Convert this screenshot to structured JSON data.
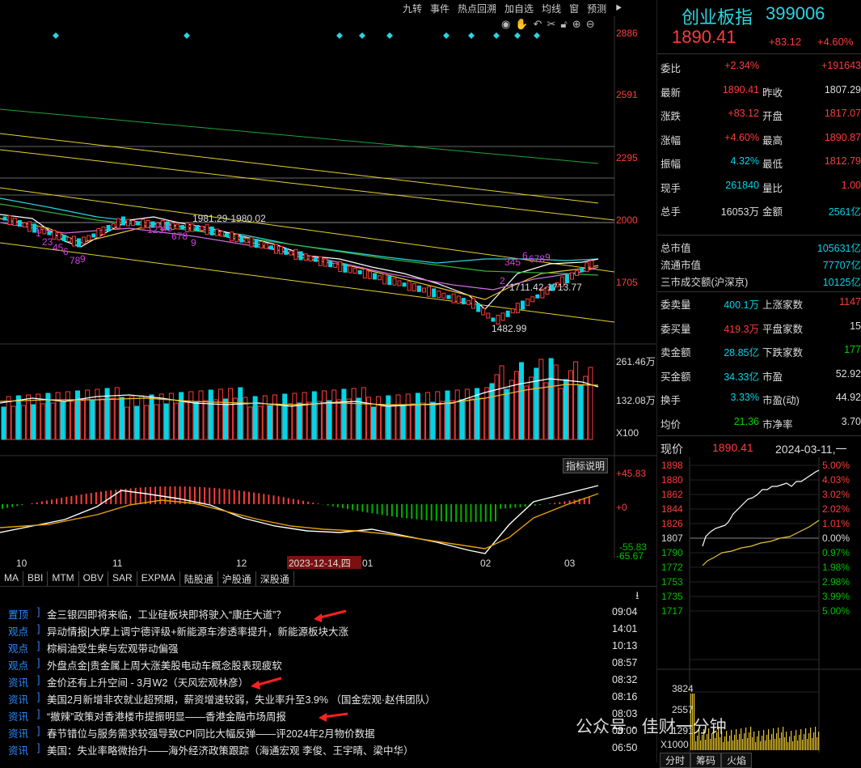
{
  "toolbar": [
    "九转",
    "事件",
    "热点回溯",
    "加自选",
    "均线",
    "窗",
    "预测"
  ],
  "main_chart": {
    "price_axis": [
      "2886",
      "2591",
      "2295",
      "2000",
      "1705"
    ],
    "annotations": {
      "hi_label": "1981.29-1980.02",
      "mid_label": "1711.42-1713.77",
      "low_label": "1482.99"
    },
    "seq_labels": [
      "1",
      "23",
      "45",
      "6",
      "78",
      "9",
      "123",
      "45",
      "678",
      "9",
      "2",
      "345",
      "678",
      "9",
      "6"
    ]
  },
  "volume_chart": {
    "axis_top": "261.46万",
    "axis_mid": "132.08万",
    "unit": "X100"
  },
  "macd_chart": {
    "button": "指标说明",
    "axis_top": "+45.83",
    "axis_zero": "+0",
    "axis_low1": "-55.83",
    "axis_low2": "-65.67"
  },
  "date_axis": [
    "10",
    "11",
    "12",
    "2023-12-14,四",
    "01",
    "02",
    "03"
  ],
  "indicator_tabs": [
    "MA",
    "BBI",
    "MTM",
    "OBV",
    "SAR",
    "EXPMA",
    "陆股通",
    "沪股通",
    "深股通"
  ],
  "news": [
    {
      "category": "置顶",
      "title": "金三银四即将来临，工业硅板块即将驶入“康庄大道”？",
      "time": "09:04"
    },
    {
      "category": "观点",
      "title": "异动情报|大摩上调宁德评级+新能源车渗透率提升，新能源板块大涨",
      "time": "14:01"
    },
    {
      "category": "观点",
      "title": "棕榈油受生柴与宏观带动偏强",
      "time": "10:13"
    },
    {
      "category": "观点",
      "title": "外盘点金|贵金属上周大涨美股电动车概念股表现疲软",
      "time": "08:57"
    },
    {
      "category": "资讯",
      "title": "金价还有上升空间 - 3月W2（天风宏观林彦）",
      "time": "08:32"
    },
    {
      "category": "资讯",
      "title": "美国2月新增非农就业超预期，薪资增速较弱，失业率升至3.9%  （国金宏观·赵伟团队）",
      "time": "08:16"
    },
    {
      "category": "资讯",
      "title": "“撤辣”政策对香港楼市提振明显——香港金融市场周报",
      "time": "08:03"
    },
    {
      "category": "资讯",
      "title": "春节错位与服务需求较强导致CPI同比大幅反弹——评2024年2月物价数据",
      "time": "08:00"
    },
    {
      "category": "资讯",
      "title": "美国：失业率略微抬升——海外经济政策跟踪（海通宏观 李俊、王宇晴、梁中华）",
      "time": "06:50"
    }
  ],
  "quote": {
    "name": "创业板指",
    "code": "399006",
    "price": "1890.41",
    "change": "+83.12",
    "change_pct": "+4.60%",
    "rows": [
      {
        "l1": "委比",
        "v1": "+2.34%",
        "c1": "red",
        "l2": "",
        "v2": "+191643",
        "c2": "red"
      },
      {
        "l1": "最新",
        "v1": "1890.41",
        "c1": "red",
        "l2": "昨收",
        "v2": "1807.29",
        "c2": "white"
      },
      {
        "l1": "涨跌",
        "v1": "+83.12",
        "c1": "red",
        "l2": "开盘",
        "v2": "1817.07",
        "c2": "red"
      },
      {
        "l1": "涨幅",
        "v1": "+4.60%",
        "c1": "red",
        "l2": "最高",
        "v2": "1890.87",
        "c2": "red"
      },
      {
        "l1": "振幅",
        "v1": "4.32%",
        "c1": "cyan",
        "l2": "最低",
        "v2": "1812.79",
        "c2": "red"
      },
      {
        "l1": "现手",
        "v1": "261840",
        "c1": "cyan",
        "l2": "量比",
        "v2": "1.00",
        "c2": "red"
      },
      {
        "l1": "总手",
        "v1": "16053万",
        "c1": "white",
        "l2": "金额",
        "v2": "2561亿",
        "c2": "cyan"
      }
    ],
    "cap_rows": [
      {
        "l": "总市值",
        "v": "105631亿"
      },
      {
        "l": "流通市值",
        "v": "77707亿"
      },
      {
        "l": "三市成交额(沪深京)",
        "v": "10125亿"
      }
    ],
    "rows2": [
      {
        "l1": "委卖量",
        "v1": "400.1万",
        "c1": "cyan",
        "l2": "上涨家数",
        "v2": "1147",
        "c2": "red"
      },
      {
        "l1": "委买量",
        "v1": "419.3万",
        "c1": "red",
        "l2": "平盘家数",
        "v2": "15",
        "c2": "white"
      },
      {
        "l1": "卖金额",
        "v1": "28.85亿",
        "c1": "cyan",
        "l2": "下跌家数",
        "v2": "177",
        "c2": "green"
      },
      {
        "l1": "买金额",
        "v1": "34.33亿",
        "c1": "cyan",
        "l2": "市盈",
        "v2": "52.92",
        "c2": "white"
      },
      {
        "l1": "换手",
        "v1": "3.33%",
        "c1": "cyan",
        "l2": "市盈(动)",
        "v2": "44.92",
        "c2": "white"
      },
      {
        "l1": "均价",
        "v1": "21.36",
        "c1": "green",
        "l2": "市净率",
        "v2": "3.70",
        "c2": "white"
      }
    ]
  },
  "intraday": {
    "label": "现价",
    "price": "1890.41",
    "date": "2024-03-11,一",
    "left_axis": [
      "1898",
      "1880",
      "1862",
      "1844",
      "1826",
      "1807",
      "1790",
      "1772",
      "1753",
      "1735",
      "1717"
    ],
    "right_axis": [
      "5.00%",
      "4.03%",
      "3.02%",
      "2.02%",
      "1.01%",
      "0.00%",
      "0.97%",
      "1.98%",
      "2.98%",
      "3.99%",
      "5.00%"
    ],
    "vol_axis": [
      "3824",
      "2557",
      "1291"
    ],
    "vol_unit": "X1000"
  },
  "bottom_tabs": [
    "分时",
    "筹码",
    "火焰"
  ],
  "watermark": "公众号 · 佳财一分钟",
  "colors": {
    "up": "#ff3b3b",
    "down": "#00d5e6",
    "accent": "#2e8bff"
  }
}
